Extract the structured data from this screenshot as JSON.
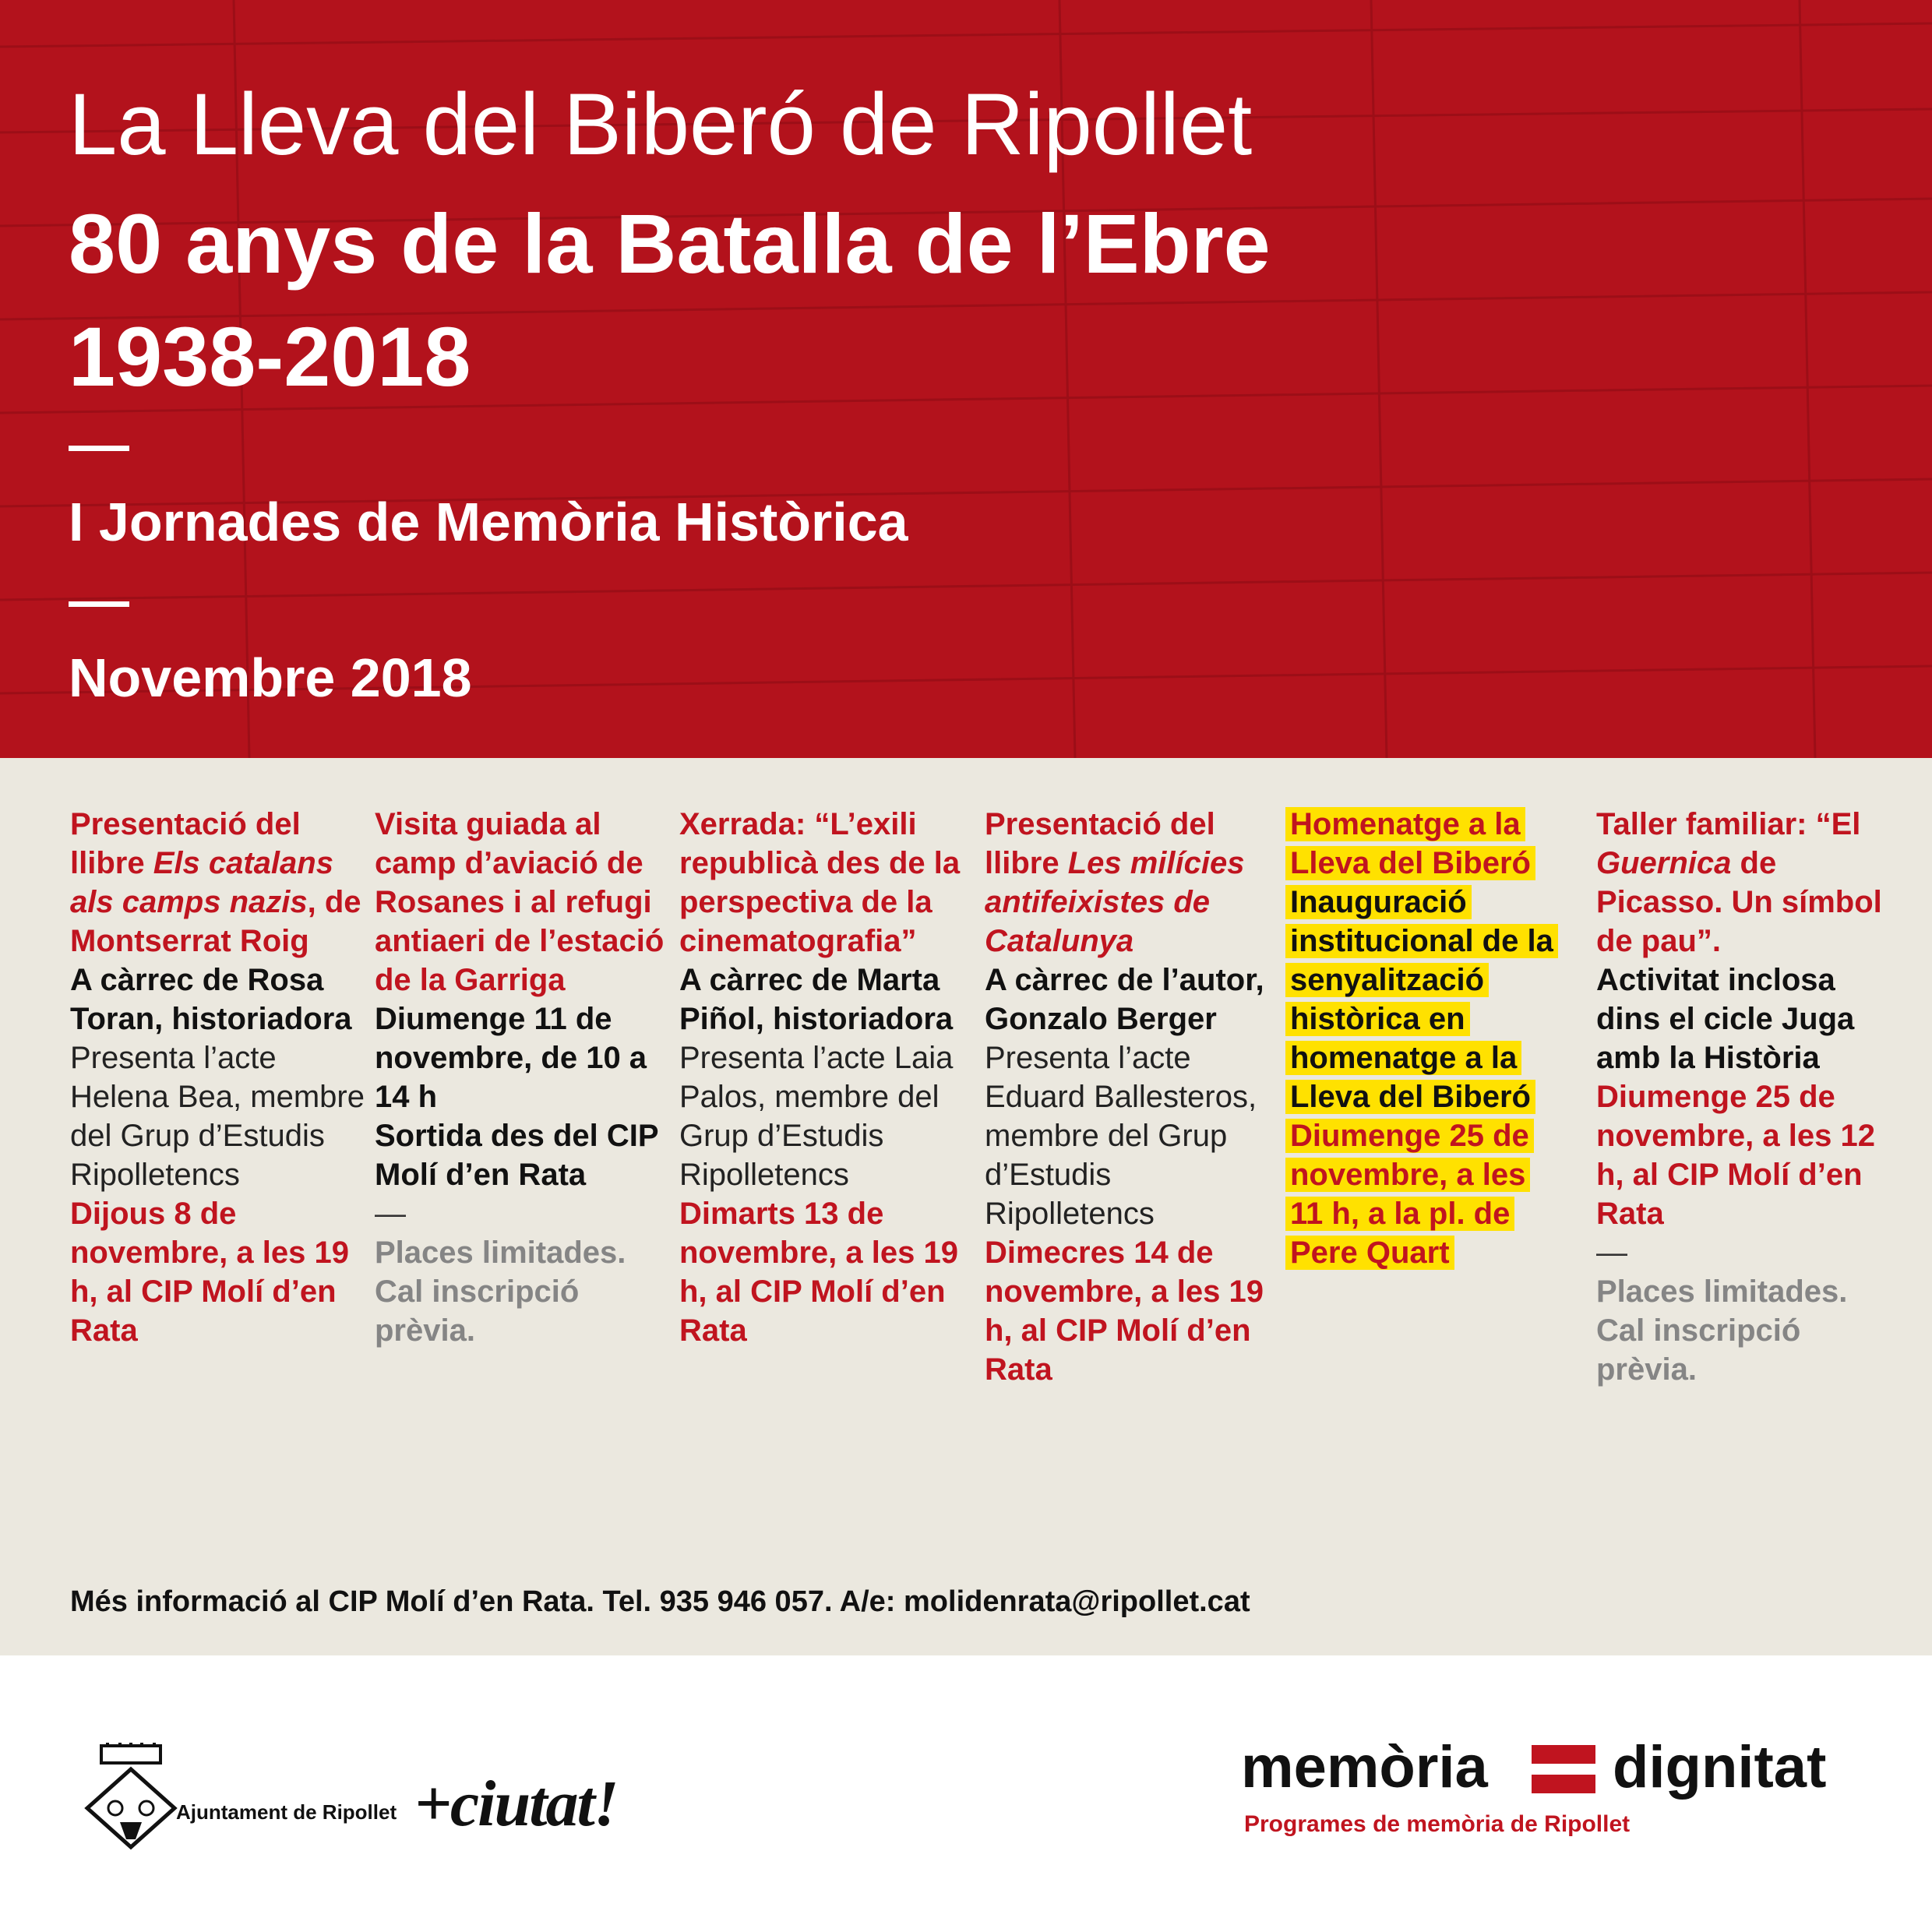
{
  "header": {
    "title": "La Lleva del Biberó de Ripollet",
    "subtitle": "80 anys de la Batalla de l’Ebre",
    "years": "1938-2018",
    "event": "I Jornades de Memòria Històrica",
    "date": "Novembre 2018"
  },
  "events": [
    {
      "heading": [
        "Presentació del llibre ",
        "Els catalans als camps nazis",
        ", de Montserrat Roig"
      ],
      "speaker": "A càrrec de Rosa Toran, historiadora",
      "presenter": "Presenta l’acte Helena Bea, membre del Grup d’Estudis Ripolletencs",
      "when": "Dijous 8 de novembre, a les 19 h, al CIP Molí d’en Rata"
    },
    {
      "heading": [
        "Visita guiada al camp d’aviació de Rosanes i al refugi antiaeri de l’estació de la Garriga"
      ],
      "when": "Diumenge 11 de novembre, de 10 a 14 h",
      "meeting": "Sortida des del CIP Molí d’en Rata",
      "separator": "—",
      "note": "Places limitades. Cal inscripció prèvia."
    },
    {
      "heading": [
        "Xerrada: “L’exili republicà des de la perspectiva de la cinematografia”"
      ],
      "speaker": "A càrrec de Marta Piñol, historiadora",
      "presenter": "Presenta l’acte Laia Palos, membre del Grup d’Estudis Ripolletencs",
      "when": "Dimarts 13 de novembre, a les 19 h, al CIP Molí d’en Rata"
    },
    {
      "heading": [
        "Presentació del llibre ",
        "Les milícies antifeixistes de Catalunya"
      ],
      "speaker": "A càrrec de l’autor, Gonzalo Berger",
      "presenter": "Presenta l’acte Eduard Ballesteros, membre del Grup d’Estudis Ripolletencs",
      "when": "Dimecres 14 de novembre, a les 19 h, al CIP Molí d’en Rata"
    },
    {
      "heading": [
        "Homenatge a la Lleva del Biberó"
      ],
      "description": "Inauguració institucional de la senyalització històrica en homenatge a la Lleva del Biberó",
      "when": "Diumenge 25 de novembre, a les 11 h, a la pl. de Pere Quart"
    },
    {
      "heading": [
        "Taller familiar: “El ",
        "Guernica",
        " de Picasso. Un símbol de pau”."
      ],
      "description": "Activitat inclosa dins el cicle Juga amb la Història",
      "when": "Diumenge 25 de novembre, a les 12 h, al CIP Molí d’en Rata",
      "separator": "—",
      "note": "Places limitades. Cal inscripció prèvia."
    }
  ],
  "info": "Més informació al CIP Molí d’en Rata. Tel. 935 946 057. A/e: molidenrata@ripollet.cat",
  "logos": {
    "council": "Ajuntament de Ripollet",
    "slogan": "+ciutat!",
    "brand_left": "memòria",
    "brand_right": "dignitat",
    "brand_tagline": "Programes de memòria de Ripollet"
  }
}
